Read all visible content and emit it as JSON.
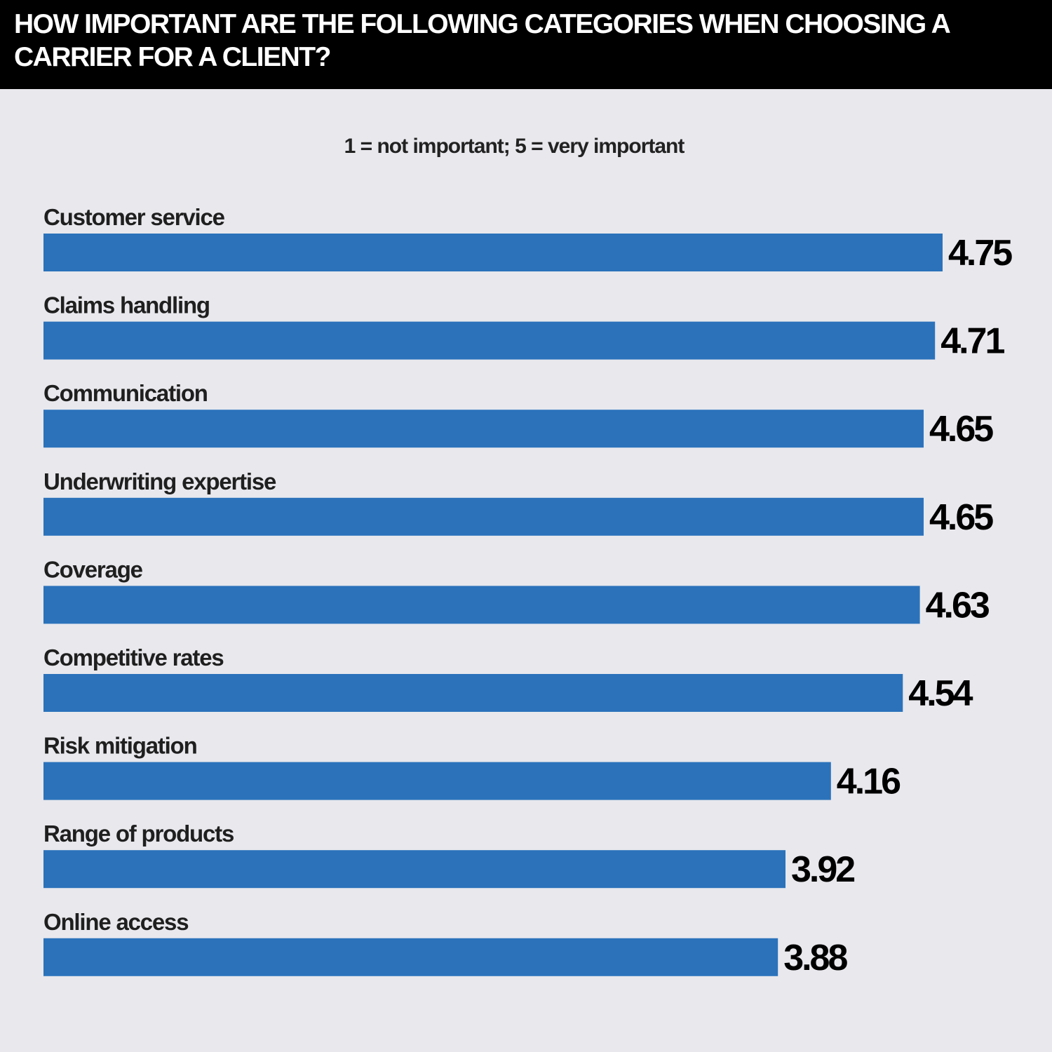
{
  "header": {
    "title": "HOW IMPORTANT ARE THE FOLLOWING CATEGORIES WHEN CHOOSING A CARRIER FOR A CLIENT?"
  },
  "subtitle": "1 = not important; 5 = very important",
  "colors": {
    "bar": "#2b72bb",
    "header_background": "#000000",
    "page_background": "#e8e8ed"
  },
  "chart_data": {
    "type": "bar",
    "orientation": "horizontal",
    "title": "HOW IMPORTANT ARE THE FOLLOWING CATEGORIES WHEN CHOOSING A CARRIER FOR A CLIENT?",
    "subtitle": "1 = not important; 5 = very important",
    "categories": [
      "Customer service",
      "Claims handling",
      "Communication",
      "Underwriting expertise",
      "Coverage",
      "Competitive rates",
      "Risk mitigation",
      "Range of products",
      "Online access"
    ],
    "values": [
      4.75,
      4.71,
      4.65,
      4.65,
      4.63,
      4.54,
      4.16,
      3.92,
      3.88
    ],
    "value_labels": [
      "4.75",
      "4.71",
      "4.65",
      "4.65",
      "4.63",
      "4.54",
      "4.16",
      "3.92",
      "3.88"
    ],
    "xlim": [
      0,
      5
    ],
    "grid": false,
    "legend": "none"
  }
}
